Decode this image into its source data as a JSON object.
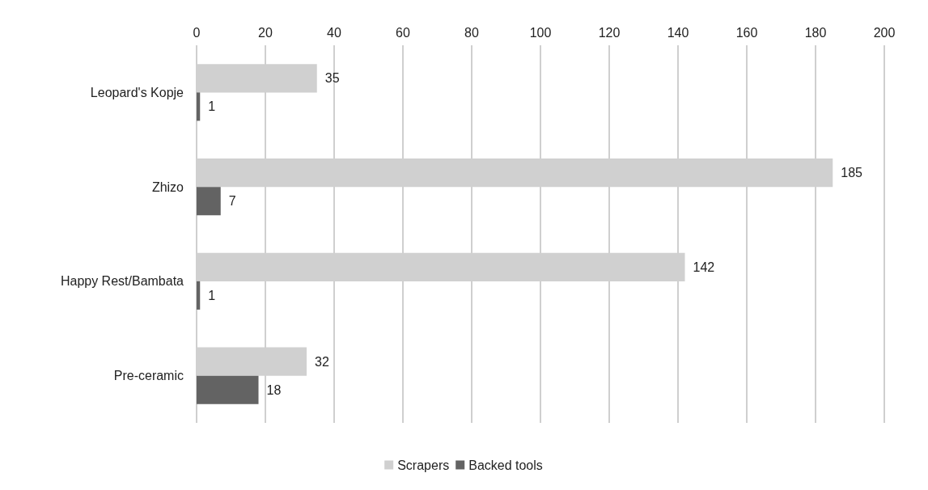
{
  "chart_data": {
    "type": "bar",
    "orientation": "horizontal",
    "categories": [
      "Leopard's Kopje",
      "Zhizo",
      "Happy Rest/Bambata",
      "Pre-ceramic"
    ],
    "series": [
      {
        "name": "Scrapers",
        "color": "#d0d0d0",
        "values": [
          35,
          185,
          142,
          32
        ]
      },
      {
        "name": "Backed tools",
        "color": "#636363",
        "values": [
          1,
          7,
          1,
          18
        ]
      }
    ],
    "xlim": [
      0,
      200
    ],
    "xticks": [
      0,
      20,
      40,
      60,
      80,
      100,
      120,
      140,
      160,
      180,
      200
    ],
    "grid": "x",
    "legend": "bottom",
    "data_labels": true
  }
}
